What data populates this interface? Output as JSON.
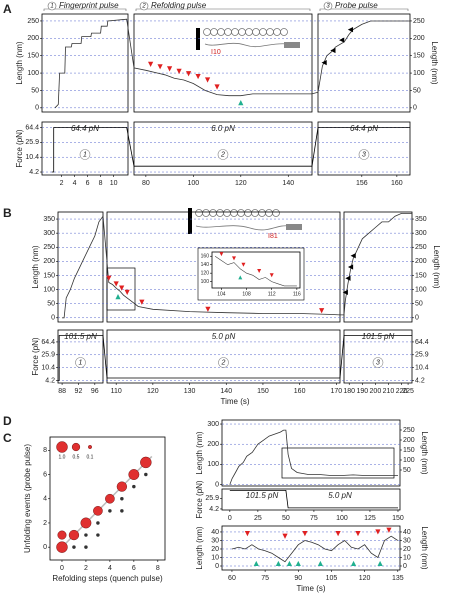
{
  "chart_data": [
    {
      "type": "line",
      "panel_label": "A",
      "headers": [
        {
          "number": "1",
          "label": "Fingerprint pulse"
        },
        {
          "number": "2",
          "label": "Refolding pulse"
        },
        {
          "number": "3",
          "label": "Probe pulse"
        }
      ],
      "y_label": "Length (nm)",
      "y2_label": "Length (nm)",
      "ylim": [
        -12,
        270
      ],
      "yticks": [
        0,
        50,
        100,
        150,
        200,
        250
      ],
      "right_axis": true,
      "grid": true,
      "x_segments": [
        {
          "xlim": [
            -1,
            12.2
          ]
        },
        {
          "xlim": [
            75,
            150
          ]
        },
        {
          "xlim": [
            151,
            161.5
          ]
        }
      ],
      "protein_label": "I10",
      "series": [
        {
          "color": "#333333",
          "x": [
            1,
            1.5,
            1.7,
            2.5,
            2.6,
            3.5,
            3.6,
            5,
            5.1,
            6.5,
            6.6,
            8,
            8.1,
            9,
            9.1,
            12,
            75,
            80,
            85,
            88,
            92,
            96,
            100,
            105,
            110,
            115,
            120,
            125,
            130,
            140,
            150,
            151,
            151.5,
            152,
            152.5,
            153,
            154,
            154.5,
            155,
            156,
            157,
            161.5
          ],
          "values": [
            0,
            10,
            100,
            100,
            175,
            175,
            185,
            185,
            205,
            205,
            215,
            215,
            235,
            235,
            250,
            255,
            115,
            108,
            100,
            95,
            85,
            80,
            70,
            50,
            38,
            35,
            35,
            40,
            40,
            40,
            40,
            45,
            120,
            150,
            160,
            175,
            190,
            210,
            225,
            240,
            250,
            250
          ]
        }
      ],
      "markers": [
        {
          "shape": "down",
          "color": "#e02020",
          "x": [
            82,
            86,
            90,
            94,
            98,
            102,
            106,
            110
          ],
          "values": [
            125,
            118,
            112,
            105,
            98,
            90,
            80,
            60
          ]
        },
        {
          "shape": "up",
          "color": "#20b090",
          "x": [
            120
          ],
          "values": [
            15
          ]
        },
        {
          "shape": "left",
          "color": "#000000",
          "x": [
            151.7,
            152.7,
            153.7,
            154.7
          ],
          "values": [
            130,
            165,
            195,
            225
          ]
        }
      ]
    },
    {
      "type": "line",
      "y_label": "Force (pN)",
      "log_y": true,
      "ylim": [
        3.5,
        90
      ],
      "yticks": [
        4.2,
        10.4,
        25.9,
        64.4
      ],
      "grid": true,
      "x_segments": [
        {
          "xlim": [
            -1,
            12.2
          ],
          "xticks": [
            2,
            4,
            6,
            8,
            10
          ]
        },
        {
          "xlim": [
            75,
            150
          ],
          "xticks": [
            80,
            100,
            120,
            140
          ]
        },
        {
          "xlim": [
            151,
            161.5
          ],
          "xticks": [
            156,
            160
          ]
        }
      ],
      "force_labels": [
        "64.4 pN",
        "6.0 pN",
        "64.4 pN"
      ],
      "phase_numbers": [
        "1",
        "2",
        "3"
      ],
      "series": [
        {
          "color": "#000000",
          "x": [
            0.5,
            0.8,
            0.8,
            12,
            75,
            150,
            151,
            161.5
          ],
          "values": [
            4.2,
            4.2,
            64.4,
            64.4,
            6.0,
            6.0,
            64.4,
            64.4
          ]
        }
      ]
    },
    {
      "type": "line",
      "panel_label": "B",
      "y_label": "Length (nm)",
      "y2_label": "Length (nm)",
      "ylim": [
        -15,
        375
      ],
      "yticks": [
        0,
        50,
        100,
        150,
        200,
        250,
        300,
        350
      ],
      "right_axis": true,
      "grid": true,
      "x_segments": [
        {
          "xlim": [
            87,
            98
          ]
        },
        {
          "xlim": [
            107.5,
            171
          ]
        },
        {
          "xlim": [
            176,
            228
          ]
        }
      ],
      "protein_label": "I81",
      "series": [
        {
          "color": "#333333",
          "x": [
            88,
            88.5,
            89,
            90,
            91,
            92,
            93,
            94,
            95,
            96,
            97,
            98,
            108,
            109,
            110,
            111,
            112,
            114,
            116,
            120,
            130,
            140,
            150,
            160,
            168,
            171,
            176,
            177,
            179,
            181,
            183,
            186,
            190,
            195,
            200,
            205,
            210,
            215,
            220,
            228
          ],
          "values": [
            0,
            0,
            70,
            100,
            140,
            170,
            200,
            230,
            260,
            290,
            340,
            360,
            125,
            118,
            105,
            95,
            80,
            60,
            40,
            30,
            22,
            18,
            15,
            15,
            12,
            10,
            10,
            60,
            120,
            170,
            210,
            240,
            280,
            300,
            320,
            340,
            340,
            360,
            370,
            370
          ]
        }
      ],
      "markers": [
        {
          "shape": "down",
          "color": "#e02020",
          "x": [
            108,
            110,
            111.5,
            113,
            117,
            135,
            166
          ],
          "values": [
            140,
            120,
            105,
            90,
            55,
            30,
            25
          ]
        },
        {
          "shape": "up",
          "color": "#20b090",
          "x": [
            110.5
          ],
          "values": [
            75
          ]
        },
        {
          "shape": "left",
          "color": "#000000",
          "x": [
            177,
            179,
            181,
            183
          ],
          "values": [
            90,
            140,
            180,
            220
          ]
        }
      ]
    },
    {
      "type": "line",
      "y_label": "Force (pN)",
      "log_y": true,
      "ylim": [
        3.5,
        150
      ],
      "yticks": [
        4.2,
        10.4,
        25.9,
        64.4
      ],
      "right_axis": true,
      "grid": true,
      "x_label": "Time (s)",
      "x_segments": [
        {
          "xlim": [
            87,
            98
          ],
          "xticks": [
            88,
            92,
            96
          ]
        },
        {
          "xlim": [
            107.5,
            171
          ],
          "xticks": [
            110,
            120,
            130,
            140,
            150,
            160,
            170
          ]
        },
        {
          "xlim": [
            176,
            228
          ],
          "xticks": [
            180,
            190,
            200,
            210,
            220,
            225
          ]
        }
      ],
      "force_labels": [
        "101.5 pN",
        "5.0 pN",
        "101.5 pN"
      ],
      "phase_numbers": [
        "1",
        "2",
        "3"
      ],
      "series": [
        {
          "color": "#000000",
          "x": [
            87,
            87.3,
            87.3,
            98,
            107.5,
            171,
            176,
            228
          ],
          "values": [
            4.2,
            4.2,
            101.5,
            101.5,
            5.0,
            5.0,
            101.5,
            101.5
          ]
        }
      ]
    },
    {
      "type": "line",
      "xlim": [
        102.5,
        116.5
      ],
      "ylim": [
        85,
        170
      ],
      "xticks": [
        104,
        108,
        112,
        116
      ],
      "yticks": [
        100,
        120,
        140,
        160
      ],
      "series": [
        {
          "color": "#444444",
          "x": [
            103,
            104,
            105,
            106,
            107,
            108,
            109,
            110,
            111,
            112,
            113,
            114,
            115,
            116
          ],
          "values": [
            160,
            150,
            140,
            145,
            130,
            120,
            115,
            105,
            110,
            100,
            95,
            90,
            90,
            90
          ]
        }
      ],
      "markers": [
        {
          "shape": "down",
          "color": "#e02020",
          "x": [
            104,
            106,
            107.5,
            110,
            112
          ],
          "values": [
            165,
            155,
            140,
            125,
            115
          ]
        },
        {
          "shape": "up",
          "color": "#20b090",
          "x": [
            107
          ],
          "values": [
            110
          ]
        }
      ]
    },
    {
      "type": "scatter",
      "panel_label": "C",
      "x_label": "Refolding steps (quench pulse)",
      "y_label": "Unfolding events (probe pulse)",
      "xlim": [
        -1,
        8.6
      ],
      "ylim": [
        -1.06,
        9.1
      ],
      "xticks": [
        0,
        2,
        4,
        6,
        8
      ],
      "yticks": [
        0,
        2,
        4,
        6,
        8
      ],
      "size_legend": {
        "values": [
          1.0,
          0.5,
          0.1
        ],
        "value_labels": [
          "1.0",
          "0.5",
          "0.1"
        ]
      },
      "series": [
        {
          "color": "#e03030",
          "x": [
            0,
            0,
            1,
            2,
            3,
            4,
            5,
            6,
            7
          ],
          "values": [
            0,
            1,
            1,
            2,
            3,
            4,
            5,
            6,
            7
          ],
          "sizes": [
            1.0,
            0.6,
            0.8,
            0.9,
            0.7,
            0.7,
            0.8,
            0.9,
            1.0
          ]
        },
        {
          "color": "#333333",
          "x": [
            1,
            2,
            3,
            4,
            5,
            6,
            3,
            5,
            7,
            2
          ],
          "values": [
            0,
            1,
            2,
            3,
            4,
            5,
            1,
            3,
            6,
            0
          ],
          "sizes": [
            0.1,
            0.1,
            0.1,
            0.1,
            0.1,
            0.1,
            0.1,
            0.1,
            0.1,
            0.1
          ]
        }
      ]
    },
    {
      "type": "line",
      "panel_label": "D",
      "y_label": "Length (nm)",
      "y2_label": "Length (nm)",
      "xlim": [
        -7,
        151.8
      ],
      "ylim": [
        -7,
        320
      ],
      "yticks": [
        0,
        100,
        200,
        300
      ],
      "y2lim": [
        -30,
        300
      ],
      "y2ticks": [
        50,
        100,
        150,
        200,
        250
      ],
      "grid": true,
      "series": [
        {
          "color": "#333333",
          "x": [
            0,
            2,
            5,
            8,
            12,
            15,
            20,
            25,
            30,
            35,
            40,
            45,
            48,
            50,
            52,
            55,
            60,
            70,
            80,
            90,
            100,
            110,
            120,
            130,
            140,
            150
          ],
          "values": [
            0,
            30,
            60,
            90,
            110,
            140,
            160,
            200,
            220,
            240,
            250,
            260,
            270,
            270,
            150,
            80,
            60,
            50,
            50,
            45,
            45,
            48,
            45,
            45,
            45,
            45
          ]
        }
      ]
    },
    {
      "type": "line",
      "y_label": "Force (pN)",
      "log_y": true,
      "xlim": [
        -7,
        151.8
      ],
      "ylim": [
        3.5,
        130
      ],
      "yticks": [
        4.2,
        25.9
      ],
      "xticks": [
        0,
        25,
        50,
        75,
        100,
        125,
        150
      ],
      "force_labels": [
        "101.5 pN",
        "5.0 pN"
      ],
      "series": [
        {
          "color": "#000000",
          "x": [
            0,
            50,
            52,
            150
          ],
          "values": [
            101.5,
            101.5,
            5.0,
            5.0
          ]
        }
      ]
    },
    {
      "type": "line",
      "y_label": "Length (nm)",
      "y2_label": "Length (nm)",
      "x_label": "Time (s)",
      "xlim": [
        55.5,
        136
      ],
      "ylim": [
        -4.7,
        47
      ],
      "yticks": [
        0,
        10,
        20,
        30,
        40
      ],
      "xticks": [
        60,
        75,
        90,
        105,
        120,
        135
      ],
      "right_axis": true,
      "grid": true,
      "series": [
        {
          "color": "#333333",
          "x": [
            60,
            63,
            66,
            69,
            72,
            75,
            78,
            81,
            84,
            87,
            90,
            93,
            96,
            99,
            102,
            105,
            108,
            111,
            114,
            117,
            120,
            123,
            126,
            129,
            132,
            135
          ],
          "values": [
            20,
            22,
            20,
            25,
            20,
            18,
            15,
            10,
            5,
            15,
            25,
            30,
            28,
            25,
            20,
            18,
            25,
            30,
            22,
            20,
            25,
            15,
            10,
            30,
            35,
            30
          ]
        }
      ],
      "markers": [
        {
          "shape": "down",
          "color": "#e02020",
          "x": [
            67,
            84,
            93,
            108,
            117,
            126,
            131
          ],
          "values": [
            38,
            35,
            38,
            38,
            38,
            40,
            42
          ]
        },
        {
          "shape": "up",
          "color": "#20b090",
          "x": [
            71,
            81,
            86,
            90,
            100,
            115,
            127
          ],
          "values": [
            3,
            3,
            3,
            3,
            3,
            3,
            3
          ]
        }
      ]
    }
  ]
}
